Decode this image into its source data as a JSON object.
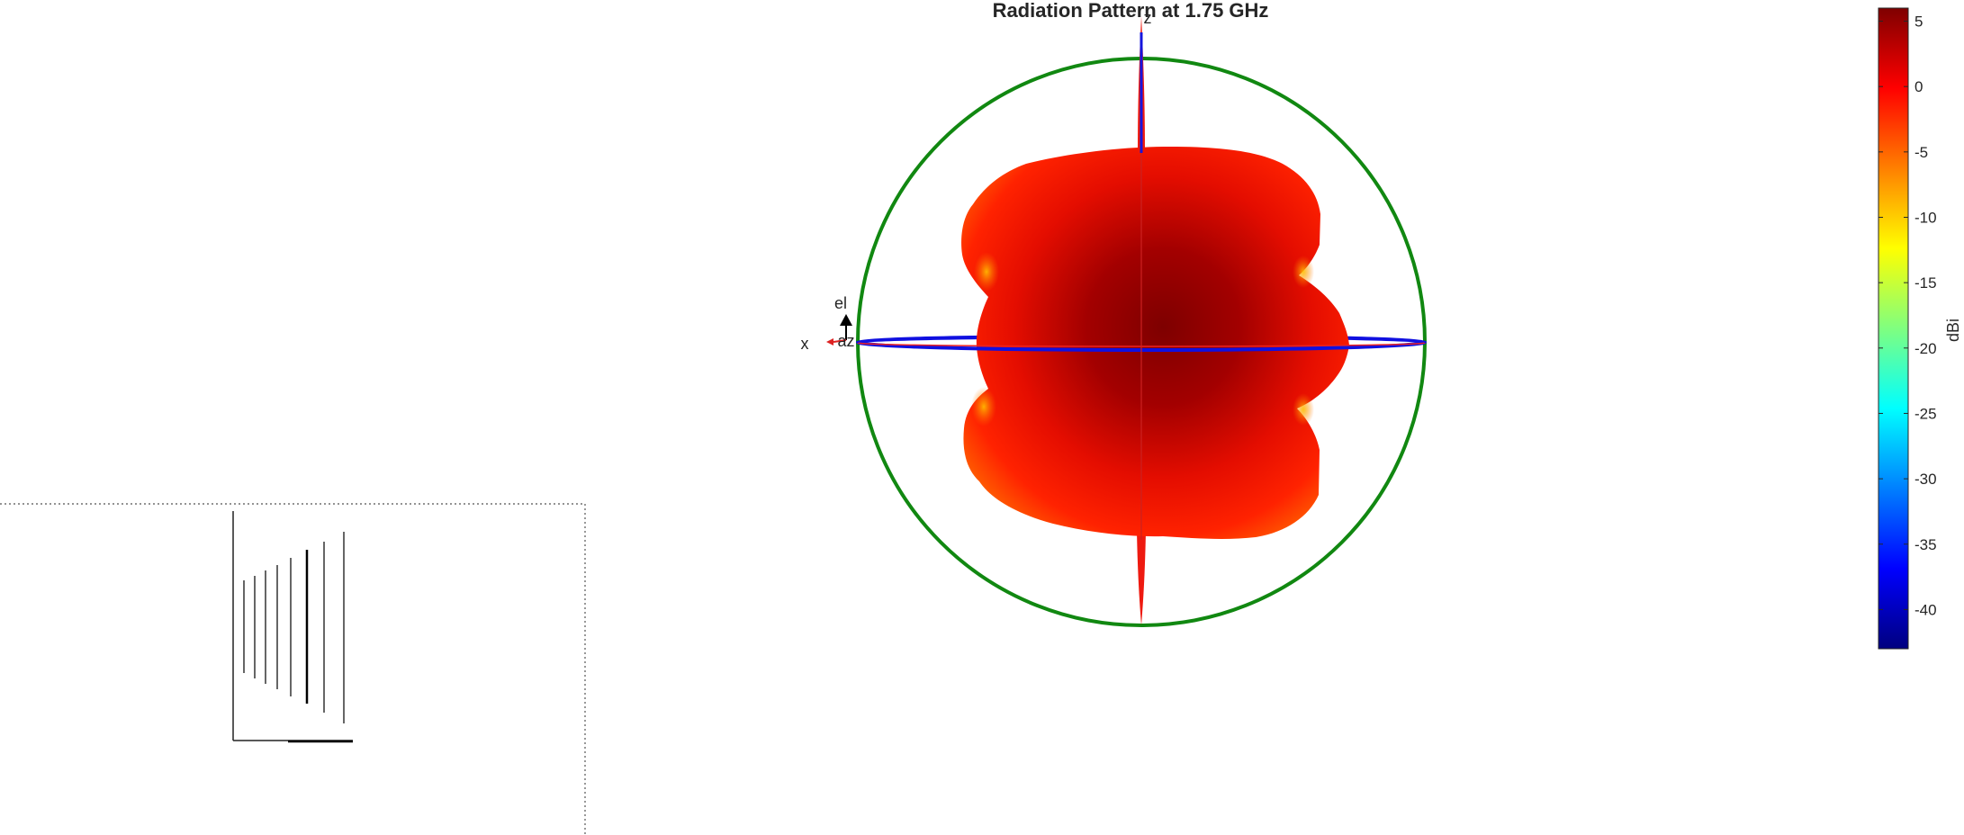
{
  "chart_data": {
    "type": "surface-3d-radiation-pattern",
    "title": "Radiation Pattern at 1.75 GHz",
    "axis_labels": {
      "x": "x",
      "z": "z",
      "el": "el",
      "az": "az"
    },
    "colorbar": {
      "label": "dBi",
      "ticks": [
        5,
        0,
        -5,
        -10,
        -15,
        -20,
        -25,
        -30,
        -35,
        -40
      ],
      "range": [
        -43,
        6
      ],
      "colormap": "jet"
    },
    "colors": {
      "elevation_circle": "#118811",
      "azimuth_ring": "#1010e0",
      "z_axis_line": "#1515dd",
      "pattern_peak": "#8a0000",
      "pattern_mid": "#ff1a00",
      "pattern_edge": "#ffb000"
    }
  }
}
